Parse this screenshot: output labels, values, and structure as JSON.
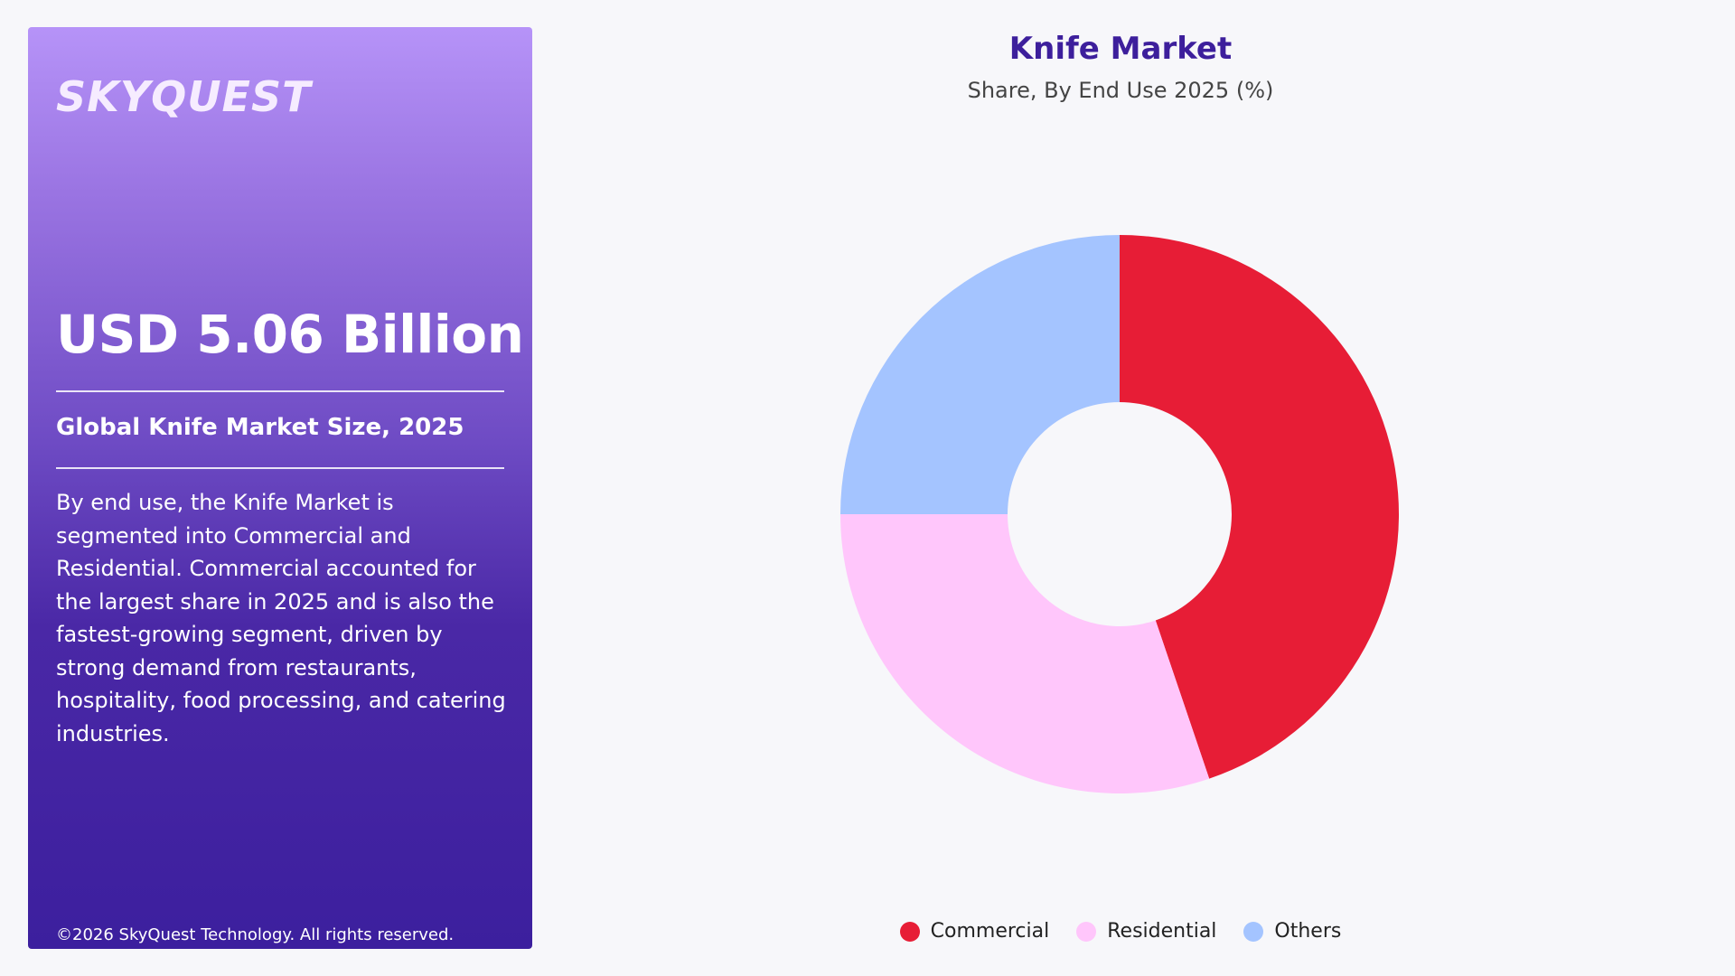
{
  "panel": {
    "logo": "SKYQUEST",
    "market_size": "USD 5.06 Billion",
    "market_label": "Global Knife Market Size, 2025",
    "description": "By end use, the Knife Market is segmented into Commercial and Residential. Commercial accounted for the largest share in 2025 and is also the fastest-growing segment, driven by strong demand from restaurants, hospitality, food processing, and catering industries.",
    "copyright": "©2026 SkyQuest Technology. All rights reserved."
  },
  "colors": {
    "commercial": "#e71d36",
    "residential": "#ffc6fb",
    "others": "#a4c4ff",
    "title": "#3d1f9c"
  },
  "chart_data": {
    "type": "pie",
    "subtype": "donut",
    "title": "Knife Market",
    "subtitle": "Share, By End Use 2025 (%)",
    "categories": [
      "Commercial",
      "Residential",
      "Others"
    ],
    "values": [
      44.8,
      30.2,
      25.0
    ],
    "colors": [
      "#e71d36",
      "#ffc6fb",
      "#a4c4ff"
    ],
    "start_angle": "top (12 o'clock), clockwise",
    "legend_position": "bottom-center",
    "legend": [
      {
        "label": "Commercial",
        "color": "#e71d36"
      },
      {
        "label": "Residential",
        "color": "#ffc6fb"
      },
      {
        "label": "Others",
        "color": "#a4c4ff"
      }
    ]
  }
}
